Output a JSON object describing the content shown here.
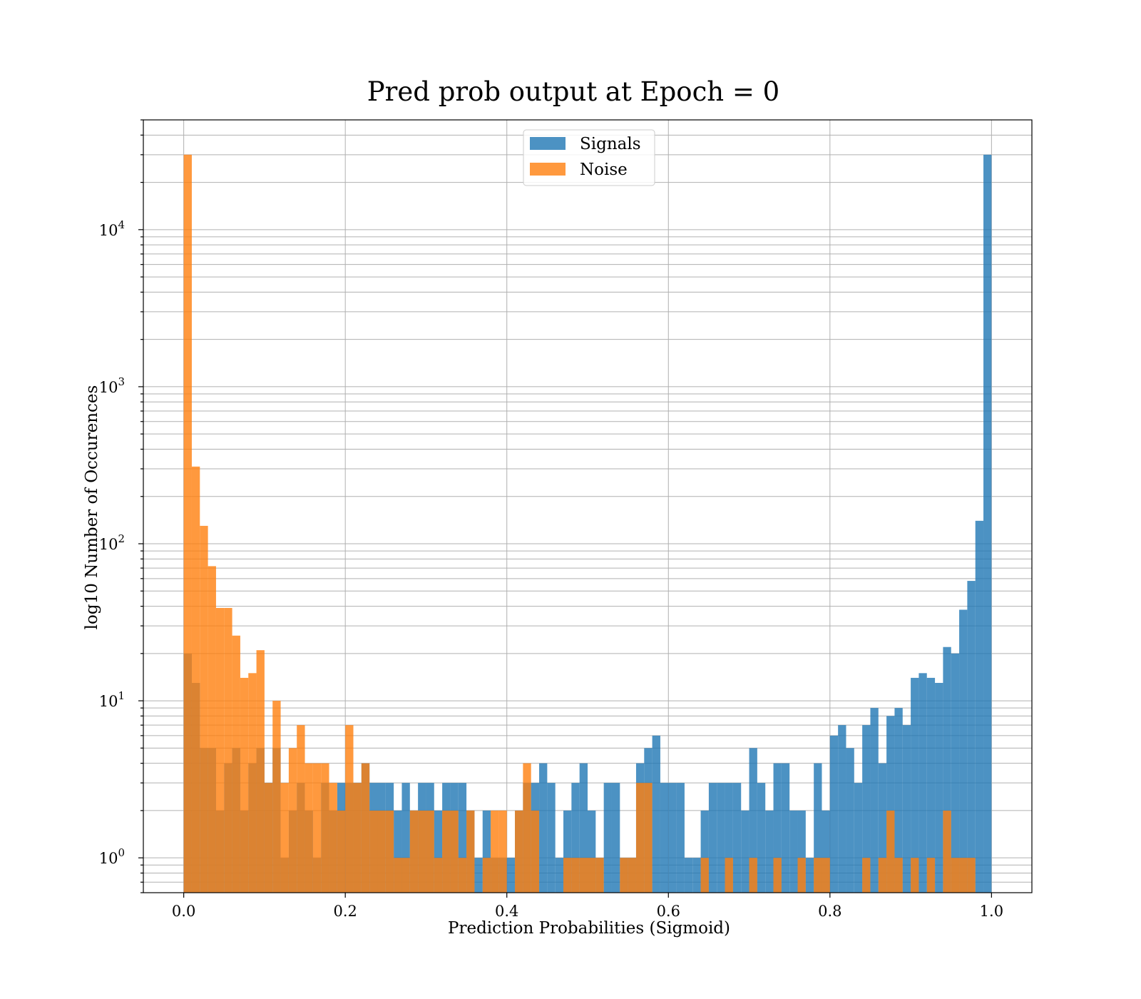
{
  "chart_data": {
    "type": "histogram",
    "title": "Pred prob output at Epoch = 0",
    "xlabel": "Prediction Probabilities (Sigmoid)",
    "ylabel": "log10 Number of Occurences",
    "xlim": [
      -0.05,
      1.05
    ],
    "ylim": [
      0.6,
      50000
    ],
    "yscale": "log",
    "grid": true,
    "legend_position": "upper center",
    "bin_width": 0.01,
    "bin_start": 0.0,
    "x_ticks": [
      {
        "value": 0.0,
        "label": "0.0"
      },
      {
        "value": 0.2,
        "label": "0.2"
      },
      {
        "value": 0.4,
        "label": "0.4"
      },
      {
        "value": 0.6,
        "label": "0.6"
      },
      {
        "value": 0.8,
        "label": "0.8"
      },
      {
        "value": 1.0,
        "label": "1.0"
      }
    ],
    "y_ticks": [
      {
        "value": 1,
        "base": "10",
        "exp": "0"
      },
      {
        "value": 10,
        "base": "10",
        "exp": "1"
      },
      {
        "value": 100,
        "base": "10",
        "exp": "2"
      },
      {
        "value": 1000,
        "base": "10",
        "exp": "3"
      },
      {
        "value": 10000,
        "base": "10",
        "exp": "4"
      }
    ],
    "series": [
      {
        "name": "Signals",
        "color": "#1f77b4",
        "alpha": 0.8,
        "counts": [
          20,
          13,
          5,
          5,
          2,
          4,
          5,
          2,
          4,
          5,
          3,
          5,
          1,
          2,
          3,
          2,
          1,
          3,
          2,
          3,
          3,
          3,
          4,
          3,
          3,
          3,
          2,
          3,
          2,
          3,
          3,
          2,
          3,
          3,
          3,
          2,
          1,
          2,
          1,
          1,
          1,
          2,
          3,
          3,
          4,
          3,
          1,
          2,
          3,
          4,
          2,
          1,
          3,
          3,
          1,
          1,
          4,
          5,
          6,
          3,
          3,
          3,
          1,
          1,
          2,
          3,
          3,
          3,
          3,
          2,
          5,
          3,
          2,
          4,
          4,
          2,
          2,
          1,
          4,
          2,
          6,
          7,
          5,
          3,
          7,
          9,
          4,
          8,
          9,
          7,
          14,
          15,
          14,
          13,
          22,
          20,
          38,
          58,
          140,
          30000
        ]
      },
      {
        "name": "Noise",
        "color": "#ff7f0e",
        "alpha": 0.8,
        "counts": [
          30000,
          310,
          130,
          72,
          39,
          39,
          26,
          14,
          15,
          21,
          3,
          10,
          3,
          5,
          7,
          4,
          4,
          4,
          3,
          2,
          7,
          3,
          4,
          2,
          2,
          2,
          1,
          1,
          2,
          2,
          2,
          1,
          2,
          2,
          1,
          2,
          0,
          1,
          2,
          2,
          0,
          2,
          4,
          2,
          0,
          0,
          0,
          1,
          1,
          1,
          1,
          1,
          0,
          0,
          1,
          1,
          3,
          3,
          0,
          0,
          0,
          0,
          0,
          0,
          1,
          0,
          0,
          1,
          0,
          0,
          1,
          0,
          0,
          1,
          0,
          0,
          1,
          0,
          1,
          1,
          0,
          0,
          0,
          0,
          1,
          0,
          1,
          2,
          1,
          0,
          1,
          0,
          1,
          0,
          2,
          1,
          1,
          1,
          0,
          0
        ]
      }
    ]
  }
}
